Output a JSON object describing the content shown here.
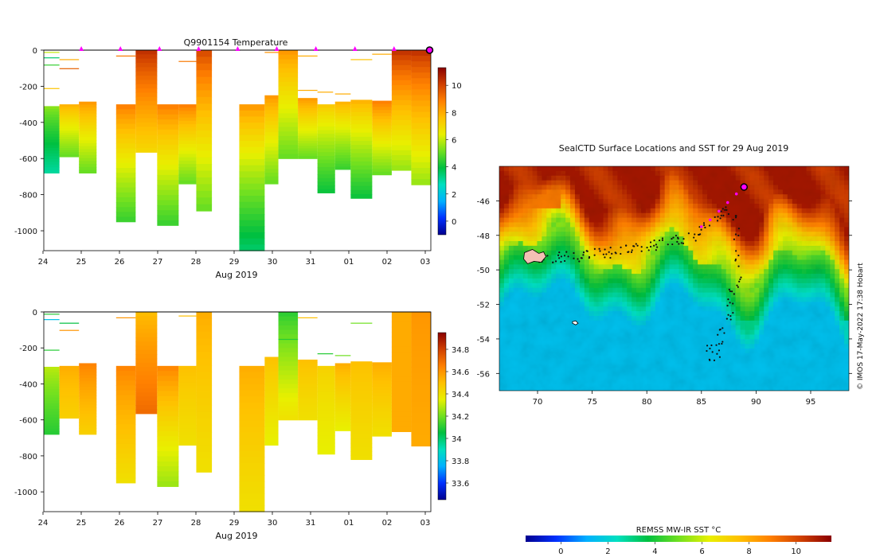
{
  "colors": {
    "jet_stops": [
      "#00008f",
      "#0030ff",
      "#00b0ff",
      "#00e0c0",
      "#00c040",
      "#70e020",
      "#e8f000",
      "#ffc000",
      "#ff8000",
      "#d04000",
      "#8a0000"
    ],
    "profile_marker": "#ff00ff",
    "track_dot": "#111111"
  },
  "chart_data": [
    {
      "id": "temperature",
      "type": "heatmap",
      "title": "Q9901154  Temperature",
      "xlabel": "Aug 2019",
      "x_ticks": [
        "24",
        "25",
        "26",
        "27",
        "28",
        "29",
        "30",
        "31",
        "01",
        "02",
        "03"
      ],
      "y_ticks": [
        0,
        -200,
        -400,
        -600,
        -800,
        -1000
      ],
      "ylim": [
        -1110,
        0
      ],
      "xlim": [
        0,
        9.9
      ],
      "colorbar": {
        "min": -1,
        "max": 11.3,
        "ticks": [
          0,
          2,
          4,
          6,
          8,
          10
        ]
      },
      "marker_days": [
        1,
        2,
        3,
        4,
        5,
        6,
        7,
        8,
        9,
        9.95
      ],
      "profiles": [
        {
          "x": 0.0,
          "w": 0.4,
          "top": -310,
          "bottom": -680,
          "t_top": 5.5,
          "t_bottom": 3.0
        },
        {
          "x": 0.4,
          "w": 0.5,
          "top": -300,
          "bottom": -590,
          "t_top": 8.0,
          "t_bottom": 5.0
        },
        {
          "x": 0.9,
          "w": 0.45,
          "top": -285,
          "bottom": -680,
          "t_top": 8.5,
          "t_bottom": 5.0
        },
        {
          "x": 1.85,
          "w": 0.5,
          "top": -300,
          "bottom": -950,
          "t_top": 9.0,
          "t_bottom": 4.5
        },
        {
          "x": 2.35,
          "w": 0.55,
          "top": 0,
          "bottom": -565,
          "t_top": 10.5,
          "t_bottom": 7.0
        },
        {
          "x": 2.9,
          "w": 0.55,
          "top": -300,
          "bottom": -970,
          "t_top": 9.0,
          "t_bottom": 4.5
        },
        {
          "x": 3.45,
          "w": 0.45,
          "top": -300,
          "bottom": -740,
          "t_top": 9.0,
          "t_bottom": 5.0
        },
        {
          "x": 3.9,
          "w": 0.4,
          "top": 0,
          "bottom": -890,
          "t_top": 10.0,
          "t_bottom": 5.0
        },
        {
          "x": 5.0,
          "w": 0.65,
          "top": -300,
          "bottom": -1110,
          "t_top": 8.5,
          "t_bottom": 3.5
        },
        {
          "x": 5.65,
          "w": 0.35,
          "top": -250,
          "bottom": -740,
          "t_top": 8.5,
          "t_bottom": 5.0
        },
        {
          "x": 6.0,
          "w": 0.5,
          "top": 0,
          "bottom": -600,
          "t_top": 8.5,
          "t_bottom": 5.0
        },
        {
          "x": 6.5,
          "w": 0.5,
          "top": -265,
          "bottom": -600,
          "t_top": 8.5,
          "t_bottom": 5.0
        },
        {
          "x": 7.0,
          "w": 0.45,
          "top": -300,
          "bottom": -790,
          "t_top": 7.5,
          "t_bottom": 4.0
        },
        {
          "x": 7.45,
          "w": 0.4,
          "top": -285,
          "bottom": -660,
          "t_top": 8.0,
          "t_bottom": 4.5
        },
        {
          "x": 7.85,
          "w": 0.55,
          "top": -275,
          "bottom": -820,
          "t_top": 8.0,
          "t_bottom": 4.0
        },
        {
          "x": 8.4,
          "w": 0.5,
          "top": -280,
          "bottom": -690,
          "t_top": 9.0,
          "t_bottom": 5.0
        },
        {
          "x": 8.9,
          "w": 0.5,
          "top": 0,
          "bottom": -665,
          "t_top": 10.5,
          "t_bottom": 5.5
        },
        {
          "x": 9.4,
          "w": 0.5,
          "top": 0,
          "bottom": -745,
          "t_top": 10.5,
          "t_bottom": 5.5
        }
      ],
      "surface_lines": [
        {
          "x": 0.0,
          "w": 0.4,
          "depth": -10,
          "v": 6.0
        },
        {
          "x": 0.0,
          "w": 0.4,
          "depth": -40,
          "v": 3.5
        },
        {
          "x": 0.0,
          "w": 0.4,
          "depth": -80,
          "v": 4.5
        },
        {
          "x": 0.4,
          "w": 0.5,
          "depth": -50,
          "v": 8.0
        },
        {
          "x": 0.4,
          "w": 0.5,
          "depth": -100,
          "v": 9.5
        },
        {
          "x": 0.0,
          "w": 0.4,
          "depth": -210,
          "v": 7.5
        },
        {
          "x": 1.85,
          "w": 0.5,
          "depth": -30,
          "v": 9.0
        },
        {
          "x": 3.45,
          "w": 0.45,
          "depth": -60,
          "v": 9.0
        },
        {
          "x": 5.65,
          "w": 0.35,
          "depth": -10,
          "v": 8.5
        },
        {
          "x": 6.5,
          "w": 0.5,
          "depth": -30,
          "v": 8.0
        },
        {
          "x": 6.5,
          "w": 0.5,
          "depth": -220,
          "v": 8.0
        },
        {
          "x": 7.0,
          "w": 0.4,
          "depth": -230,
          "v": 8.0
        },
        {
          "x": 7.45,
          "w": 0.4,
          "depth": -240,
          "v": 8.0
        },
        {
          "x": 7.85,
          "w": 0.55,
          "depth": -50,
          "v": 7.5
        },
        {
          "x": 8.4,
          "w": 0.5,
          "depth": -20,
          "v": 8.0
        }
      ]
    },
    {
      "id": "salinity",
      "type": "heatmap",
      "title": "",
      "xlabel": "Aug 2019",
      "x_ticks": [
        "24",
        "25",
        "26",
        "27",
        "28",
        "29",
        "30",
        "31",
        "01",
        "02",
        "03"
      ],
      "y_ticks": [
        0,
        -200,
        -400,
        -600,
        -800,
        -1000
      ],
      "ylim": [
        -1110,
        0
      ],
      "xlim": [
        0,
        9.9
      ],
      "colorbar": {
        "min": 33.45,
        "max": 34.95,
        "ticks": [
          "33.6",
          "33.8",
          "34",
          "34.2",
          "34.4",
          "34.6",
          "34.8"
        ]
      },
      "profiles": [
        {
          "x": 0.0,
          "w": 0.4,
          "top": -305,
          "bottom": -680,
          "t_top": 34.3,
          "t_bottom": 34.1
        },
        {
          "x": 0.4,
          "w": 0.5,
          "top": -300,
          "bottom": -590,
          "t_top": 34.55,
          "t_bottom": 34.45
        },
        {
          "x": 0.9,
          "w": 0.45,
          "top": -285,
          "bottom": -680,
          "t_top": 34.65,
          "t_bottom": 34.45
        },
        {
          "x": 1.85,
          "w": 0.5,
          "top": -300,
          "bottom": -950,
          "t_top": 34.65,
          "t_bottom": 34.4
        },
        {
          "x": 2.35,
          "w": 0.55,
          "top": 0,
          "bottom": -565,
          "t_top": 34.5,
          "t_bottom": 34.7
        },
        {
          "x": 2.9,
          "w": 0.55,
          "top": -300,
          "bottom": -970,
          "t_top": 34.65,
          "t_bottom": 34.25
        },
        {
          "x": 3.45,
          "w": 0.45,
          "top": -300,
          "bottom": -740,
          "t_top": 34.5,
          "t_bottom": 34.4
        },
        {
          "x": 3.9,
          "w": 0.4,
          "top": 0,
          "bottom": -890,
          "t_top": 34.55,
          "t_bottom": 34.4
        },
        {
          "x": 5.0,
          "w": 0.65,
          "top": -300,
          "bottom": -1110,
          "t_top": 34.55,
          "t_bottom": 34.4
        },
        {
          "x": 5.65,
          "w": 0.35,
          "top": -250,
          "bottom": -740,
          "t_top": 34.5,
          "t_bottom": 34.35
        },
        {
          "x": 6.0,
          "w": 0.5,
          "top": 0,
          "bottom": -600,
          "t_top": 34.1,
          "t_bottom": 34.4
        },
        {
          "x": 6.5,
          "w": 0.5,
          "top": -265,
          "bottom": -600,
          "t_top": 34.5,
          "t_bottom": 34.4
        },
        {
          "x": 7.0,
          "w": 0.45,
          "top": -300,
          "bottom": -790,
          "t_top": 34.45,
          "t_bottom": 34.35
        },
        {
          "x": 7.45,
          "w": 0.4,
          "top": -285,
          "bottom": -660,
          "t_top": 34.55,
          "t_bottom": 34.35
        },
        {
          "x": 7.85,
          "w": 0.55,
          "top": -275,
          "bottom": -820,
          "t_top": 34.5,
          "t_bottom": 34.4
        },
        {
          "x": 8.4,
          "w": 0.5,
          "top": -280,
          "bottom": -690,
          "t_top": 34.55,
          "t_bottom": 34.4
        },
        {
          "x": 8.9,
          "w": 0.5,
          "top": 0,
          "bottom": -665,
          "t_top": 34.55,
          "t_bottom": 34.55
        },
        {
          "x": 9.4,
          "w": 0.5,
          "top": 0,
          "bottom": -745,
          "t_top": 34.6,
          "t_bottom": 34.55
        }
      ],
      "surface_lines": [
        {
          "x": 0.0,
          "w": 0.4,
          "depth": -10,
          "v": 34.1
        },
        {
          "x": 0.0,
          "w": 0.4,
          "depth": -40,
          "v": 33.8
        },
        {
          "x": 0.0,
          "w": 0.4,
          "depth": -210,
          "v": 34.1
        },
        {
          "x": 0.4,
          "w": 0.5,
          "depth": -60,
          "v": 34.05
        },
        {
          "x": 0.4,
          "w": 0.5,
          "depth": -100,
          "v": 34.6
        },
        {
          "x": 1.85,
          "w": 0.5,
          "depth": -30,
          "v": 34.6
        },
        {
          "x": 3.45,
          "w": 0.45,
          "depth": -20,
          "v": 34.5
        },
        {
          "x": 6.0,
          "w": 0.5,
          "depth": -150,
          "v": 34.1
        },
        {
          "x": 6.5,
          "w": 0.5,
          "depth": -30,
          "v": 34.5
        },
        {
          "x": 7.0,
          "w": 0.4,
          "depth": -230,
          "v": 34.1
        },
        {
          "x": 7.45,
          "w": 0.4,
          "depth": -240,
          "v": 34.2
        },
        {
          "x": 7.85,
          "w": 0.55,
          "depth": -60,
          "v": 34.2
        }
      ]
    },
    {
      "id": "sst_map",
      "type": "heatmap",
      "title": "SealCTD Surface Locations and SST for 29 Aug 2019",
      "xlim": [
        66.5,
        98.5
      ],
      "ylim": [
        -57.0,
        -44.0
      ],
      "x_ticks": [
        70,
        75,
        80,
        85,
        90,
        95
      ],
      "y_ticks": [
        -46,
        -48,
        -50,
        -52,
        -54,
        -56
      ],
      "colorbar": {
        "label": "REMSS MW-IR SST °C",
        "min": -1.5,
        "max": 11.5,
        "ticks": [
          0,
          2,
          4,
          6,
          8,
          10
        ]
      },
      "sst_north": 11.0,
      "sst_south": 1.5,
      "front_lat_west": -48.6,
      "front_lat_east": -50.2,
      "track_lon": [
        69.5,
        70.5,
        71.5,
        72.5,
        73.5,
        74.5,
        75.5,
        76.5,
        77.5,
        78.5,
        79.5,
        80.5,
        81.5,
        82.5,
        83.5,
        84.5,
        85.5,
        86.5,
        87.5,
        88.0,
        88.5,
        88.2,
        87.8,
        87.5,
        87.0,
        86.5,
        86.0,
        85.5
      ],
      "track_lat": [
        -49.3,
        -49.3,
        -49.4,
        -49.2,
        -49.3,
        -49.1,
        -49.0,
        -49.1,
        -48.8,
        -48.8,
        -48.7,
        -48.6,
        -48.4,
        -48.3,
        -48.2,
        -48.0,
        -47.5,
        -46.8,
        -46.5,
        -47.2,
        -49.0,
        -50.8,
        -51.5,
        -52.5,
        -53.5,
        -54.6,
        -55.2,
        -54.0
      ],
      "recent_lon": [
        85.0,
        85.8,
        86.6,
        87.4,
        88.2,
        88.9
      ],
      "recent_lat": [
        -47.5,
        -47.1,
        -46.6,
        -46.1,
        -45.6,
        -45.2
      ],
      "island_labels": [],
      "attribution": "© IMOS 17-May-2022 17:38 Hobart"
    }
  ]
}
